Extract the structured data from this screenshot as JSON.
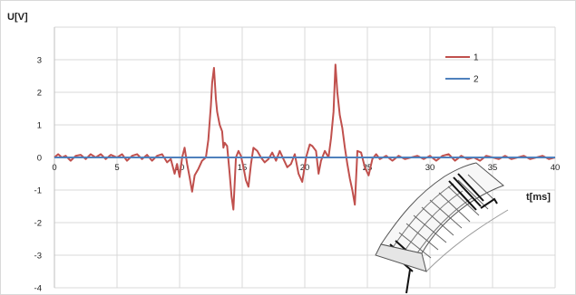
{
  "chart_data": {
    "type": "line",
    "ylabel": "U[V]",
    "xlabel": "t[ms]",
    "xlim": [
      0,
      40
    ],
    "ylim": [
      -4,
      4
    ],
    "x_ticks": [
      0,
      5,
      10,
      15,
      20,
      25,
      30,
      35,
      40
    ],
    "y_ticks": [
      -4,
      -3,
      -2,
      -1,
      0,
      1,
      2,
      3
    ],
    "grid": true,
    "legend_position": "top-right",
    "series": [
      {
        "name": "1",
        "color": "#c0504d",
        "points": [
          [
            0.0,
            0.0
          ],
          [
            0.3,
            0.1
          ],
          [
            0.6,
            0.0
          ],
          [
            0.9,
            0.05
          ],
          [
            1.3,
            -0.1
          ],
          [
            1.7,
            0.05
          ],
          [
            2.1,
            0.08
          ],
          [
            2.5,
            -0.05
          ],
          [
            2.9,
            0.1
          ],
          [
            3.3,
            0.0
          ],
          [
            3.7,
            0.1
          ],
          [
            4.1,
            -0.05
          ],
          [
            4.5,
            0.08
          ],
          [
            5.0,
            0.0
          ],
          [
            5.4,
            0.1
          ],
          [
            5.8,
            -0.1
          ],
          [
            6.2,
            0.05
          ],
          [
            6.6,
            0.1
          ],
          [
            7.0,
            -0.05
          ],
          [
            7.4,
            0.08
          ],
          [
            7.8,
            -0.1
          ],
          [
            8.2,
            0.05
          ],
          [
            8.6,
            0.1
          ],
          [
            9.0,
            -0.15
          ],
          [
            9.3,
            -0.05
          ],
          [
            9.6,
            -0.5
          ],
          [
            9.8,
            -0.2
          ],
          [
            10.0,
            -0.6
          ],
          [
            10.2,
            0.0
          ],
          [
            10.4,
            0.3
          ],
          [
            10.6,
            -0.2
          ],
          [
            10.8,
            -0.6
          ],
          [
            11.0,
            -1.05
          ],
          [
            11.2,
            -0.55
          ],
          [
            11.5,
            -0.35
          ],
          [
            11.8,
            -0.1
          ],
          [
            12.1,
            0.0
          ],
          [
            12.3,
            0.55
          ],
          [
            12.5,
            1.6
          ],
          [
            12.6,
            2.3
          ],
          [
            12.75,
            2.75
          ],
          [
            12.9,
            1.8
          ],
          [
            13.0,
            1.4
          ],
          [
            13.2,
            1.0
          ],
          [
            13.4,
            0.8
          ],
          [
            13.5,
            0.3
          ],
          [
            13.6,
            0.45
          ],
          [
            13.8,
            0.35
          ],
          [
            14.0,
            -0.5
          ],
          [
            14.15,
            -1.2
          ],
          [
            14.3,
            -1.6
          ],
          [
            14.5,
            0.0
          ],
          [
            14.7,
            0.2
          ],
          [
            14.9,
            0.05
          ],
          [
            15.1,
            -0.3
          ],
          [
            15.3,
            -0.7
          ],
          [
            15.5,
            -0.9
          ],
          [
            15.7,
            -0.2
          ],
          [
            15.9,
            0.3
          ],
          [
            16.2,
            0.2
          ],
          [
            16.5,
            0.0
          ],
          [
            16.8,
            -0.15
          ],
          [
            17.1,
            -0.05
          ],
          [
            17.4,
            0.15
          ],
          [
            17.7,
            -0.1
          ],
          [
            18.0,
            0.2
          ],
          [
            18.3,
            -0.05
          ],
          [
            18.6,
            -0.3
          ],
          [
            18.9,
            -0.2
          ],
          [
            19.2,
            0.1
          ],
          [
            19.5,
            -0.5
          ],
          [
            19.8,
            -0.75
          ],
          [
            20.1,
            0.0
          ],
          [
            20.4,
            0.4
          ],
          [
            20.6,
            0.35
          ],
          [
            20.9,
            0.2
          ],
          [
            21.1,
            -0.5
          ],
          [
            21.3,
            -0.1
          ],
          [
            21.6,
            0.2
          ],
          [
            21.9,
            0.0
          ],
          [
            22.1,
            0.6
          ],
          [
            22.3,
            1.4
          ],
          [
            22.45,
            2.85
          ],
          [
            22.6,
            2.0
          ],
          [
            22.8,
            1.3
          ],
          [
            23.0,
            0.9
          ],
          [
            23.2,
            0.3
          ],
          [
            23.4,
            -0.2
          ],
          [
            23.6,
            -0.65
          ],
          [
            23.8,
            -1.0
          ],
          [
            24.0,
            -1.45
          ],
          [
            24.2,
            0.2
          ],
          [
            24.5,
            0.15
          ],
          [
            24.8,
            -0.3
          ],
          [
            25.1,
            -0.55
          ],
          [
            25.4,
            -0.05
          ],
          [
            25.7,
            0.1
          ],
          [
            26.0,
            -0.05
          ],
          [
            26.5,
            0.05
          ],
          [
            27.0,
            -0.1
          ],
          [
            27.5,
            0.05
          ],
          [
            28.0,
            -0.05
          ],
          [
            28.5,
            0.0
          ],
          [
            29.0,
            0.05
          ],
          [
            29.5,
            -0.05
          ],
          [
            30.0,
            0.05
          ],
          [
            30.5,
            -0.1
          ],
          [
            31.0,
            0.05
          ],
          [
            31.5,
            0.1
          ],
          [
            32.0,
            -0.1
          ],
          [
            32.5,
            0.05
          ],
          [
            33.0,
            -0.05
          ],
          [
            33.5,
            0.0
          ],
          [
            34.0,
            -0.1
          ],
          [
            34.5,
            0.05
          ],
          [
            35.0,
            0.0
          ],
          [
            35.5,
            -0.05
          ],
          [
            36.0,
            0.05
          ],
          [
            36.5,
            -0.05
          ],
          [
            37.0,
            0.0
          ],
          [
            37.5,
            0.05
          ],
          [
            38.0,
            -0.05
          ],
          [
            38.5,
            0.0
          ],
          [
            39.0,
            0.05
          ],
          [
            39.5,
            -0.05
          ],
          [
            40.0,
            0.0
          ]
        ]
      },
      {
        "name": "2",
        "color": "#4f81bd",
        "points": [
          [
            0,
            0.0
          ],
          [
            5,
            0.0
          ],
          [
            10,
            0.0
          ],
          [
            15,
            0.0
          ],
          [
            20,
            0.0
          ],
          [
            25,
            0.0
          ],
          [
            30,
            0.0
          ],
          [
            35,
            0.0
          ],
          [
            40,
            0.0
          ]
        ]
      }
    ]
  }
}
